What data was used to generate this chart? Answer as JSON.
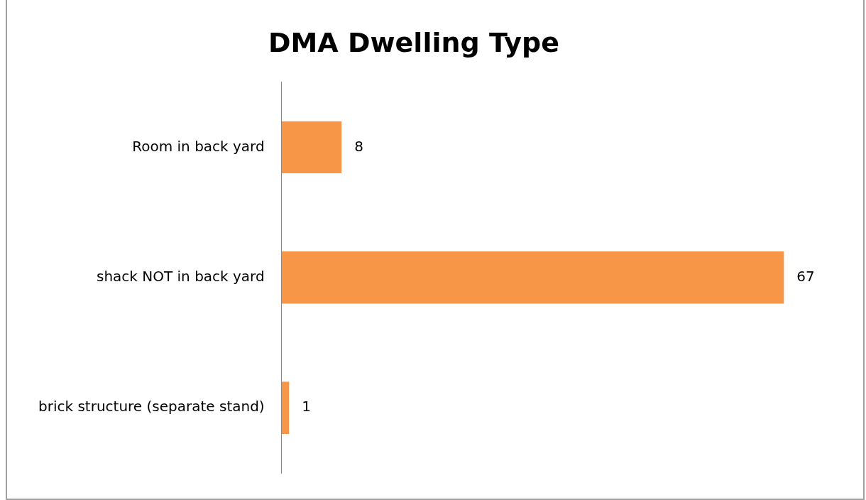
{
  "chart_data": {
    "type": "bar",
    "title": "DMA Dwelling Type",
    "orientation": "horizontal",
    "categories": [
      "Room in back yard",
      "shack NOT in back yard",
      "brick structure (separate stand)"
    ],
    "values": [
      8,
      67,
      1
    ],
    "color": "#f79646",
    "data_labels": true,
    "tick_labels": "y",
    "grid": false,
    "legend": false
  }
}
